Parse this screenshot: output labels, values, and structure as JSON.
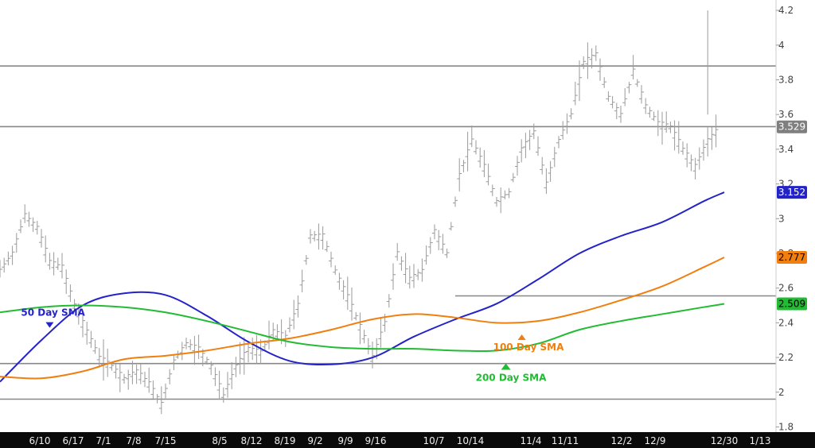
{
  "chart_data": {
    "type": "line",
    "title": "",
    "xlabel": "",
    "ylabel": "",
    "ylim": [
      1.77,
      4.26
    ],
    "y_ticks": [
      "1.8",
      "2",
      "2.2",
      "2.4",
      "2.6",
      "2.8",
      "3",
      "3.2",
      "3.4",
      "3.6",
      "3.8",
      "4",
      "4.2"
    ],
    "x_ticks": [
      "6/10",
      "6/17",
      "7/1",
      "7/8",
      "7/15",
      "8/5",
      "8/12",
      "8/19",
      "9/2",
      "9/9",
      "9/16",
      "10/7",
      "10/14",
      "11/4",
      "11/11",
      "12/2",
      "12/9",
      "12/30",
      "1/13"
    ],
    "grid": false,
    "colors": {
      "sma50": "#2323c8",
      "sma100": "#f07f10",
      "sma200": "#22bb33",
      "price_bars": "#9a9a9a",
      "hlines": "#888888",
      "axis_bg": "#0a0a0a",
      "last_price_badge": "#7f7f7f"
    },
    "horizontal_lines": [
      3.88,
      3.53,
      2.555,
      2.165,
      1.96
    ],
    "series": [
      {
        "name": "50 Day SMA",
        "x": [
          0,
          10,
          20,
          30,
          40,
          50,
          60,
          70,
          80,
          90,
          100,
          110,
          120,
          130,
          140,
          150,
          160,
          170,
          175
        ],
        "values": [
          2.06,
          2.3,
          2.5,
          2.57,
          2.56,
          2.44,
          2.29,
          2.18,
          2.16,
          2.2,
          2.32,
          2.42,
          2.51,
          2.65,
          2.8,
          2.9,
          2.98,
          3.1,
          3.152
        ],
        "badge": "3.152"
      },
      {
        "name": "100 Day SMA",
        "x": [
          0,
          10,
          20,
          30,
          40,
          50,
          60,
          70,
          80,
          90,
          100,
          110,
          120,
          130,
          140,
          150,
          160,
          170,
          175
        ],
        "values": [
          2.09,
          2.08,
          2.12,
          2.19,
          2.21,
          2.24,
          2.28,
          2.31,
          2.36,
          2.42,
          2.45,
          2.43,
          2.4,
          2.41,
          2.46,
          2.53,
          2.61,
          2.72,
          2.777
        ],
        "badge": "2.777"
      },
      {
        "name": "200 Day SMA",
        "x": [
          0,
          10,
          20,
          30,
          40,
          50,
          60,
          70,
          80,
          90,
          100,
          110,
          120,
          130,
          140,
          150,
          160,
          170,
          175
        ],
        "values": [
          2.46,
          2.49,
          2.5,
          2.49,
          2.46,
          2.41,
          2.35,
          2.29,
          2.26,
          2.25,
          2.25,
          2.24,
          2.24,
          2.28,
          2.36,
          2.41,
          2.45,
          2.49,
          2.509
        ],
        "badge": "2.509"
      }
    ],
    "price": {
      "x": [
        0,
        3,
        6,
        9,
        12,
        15,
        18,
        21,
        24,
        27,
        30,
        33,
        36,
        39,
        42,
        45,
        48,
        51,
        54,
        57,
        60,
        63,
        66,
        69,
        72,
        75,
        78,
        81,
        84,
        87,
        90,
        93,
        96,
        99,
        102,
        105,
        108,
        111,
        114,
        117,
        120,
        123,
        126,
        129,
        132,
        135,
        138,
        141,
        144,
        147,
        150,
        153,
        156,
        159,
        162,
        165,
        168,
        171,
        174
      ],
      "values": [
        2.7,
        2.8,
        3.02,
        2.95,
        2.75,
        2.72,
        2.5,
        2.35,
        2.2,
        2.15,
        2.08,
        2.12,
        2.05,
        1.93,
        2.18,
        2.28,
        2.25,
        2.15,
        1.98,
        2.15,
        2.25,
        2.23,
        2.35,
        2.32,
        2.5,
        2.9,
        2.9,
        2.7,
        2.55,
        2.38,
        2.2,
        2.4,
        2.8,
        2.65,
        2.7,
        2.93,
        2.8,
        3.25,
        3.45,
        3.3,
        3.1,
        3.15,
        3.4,
        3.5,
        3.2,
        3.45,
        3.6,
        3.9,
        3.95,
        3.7,
        3.6,
        3.85,
        3.65,
        3.55,
        3.529,
        3.4,
        3.3,
        3.45,
        3.529
      ]
    },
    "last_price": "3.529",
    "annotations": [
      {
        "text": "50 Day SMA",
        "color": "#2323c8",
        "x": 12,
        "y": 2.44,
        "marker": "down"
      },
      {
        "text": "100  Day SMA",
        "color": "#f07f10",
        "x": 123,
        "y": 2.26,
        "marker": "up"
      },
      {
        "text": "200 Day SMA",
        "color": "#22bb33",
        "x": 123,
        "y": 2.12,
        "marker": "up"
      }
    ]
  }
}
